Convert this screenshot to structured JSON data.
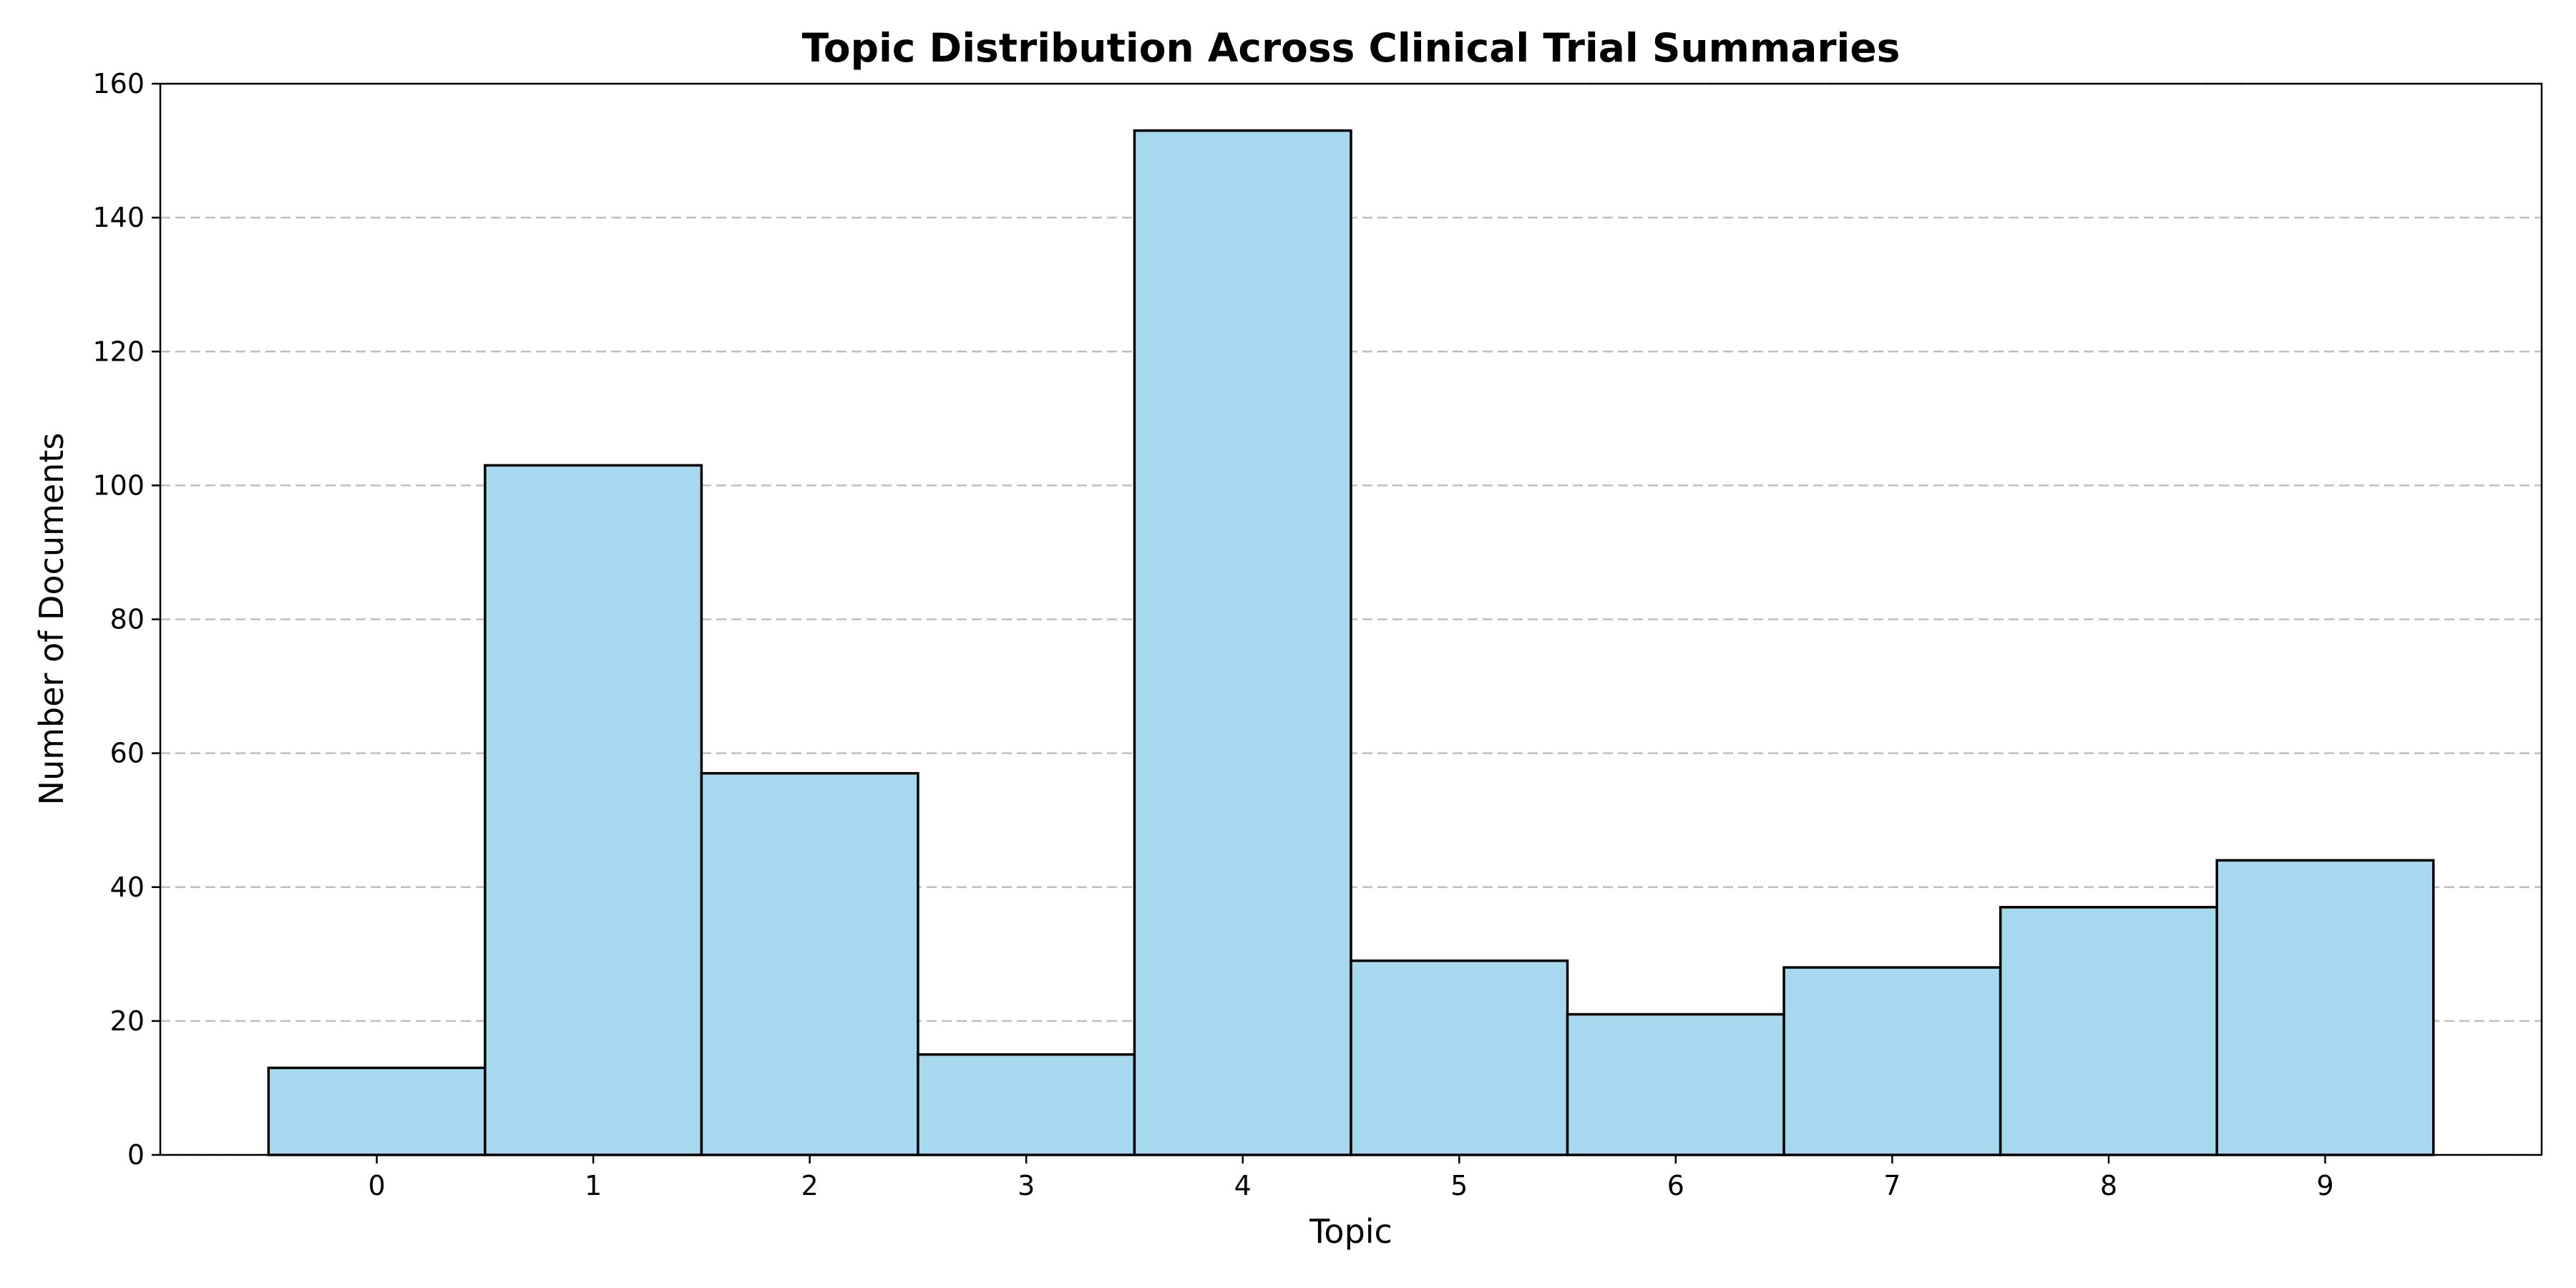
{
  "chart_data": {
    "type": "bar",
    "title": "Topic Distribution Across Clinical Trial Summaries",
    "xlabel": "Topic",
    "ylabel": "Number of Documents",
    "categories": [
      "0",
      "1",
      "2",
      "3",
      "4",
      "5",
      "6",
      "7",
      "8",
      "9"
    ],
    "values": [
      13,
      103,
      57,
      15,
      153,
      29,
      21,
      28,
      37,
      44
    ],
    "ylim": [
      0,
      160
    ],
    "yticks": [
      0,
      20,
      40,
      60,
      80,
      100,
      120,
      140,
      160
    ],
    "grid": "horizontal dashed",
    "bar_color": "#a6d9ef",
    "edge_color": "#000000"
  }
}
